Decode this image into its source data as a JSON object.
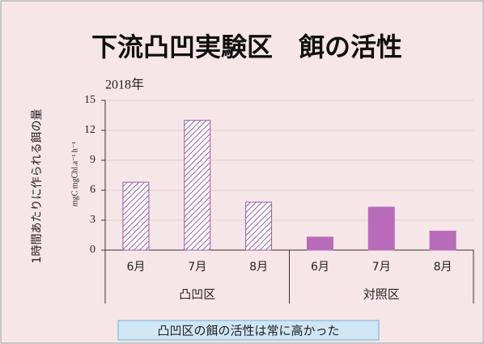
{
  "chart_data": {
    "type": "bar",
    "title": "下流凸凹実験区　餌の活性",
    "subtitle": "2018年",
    "y_label": "1時間あたりに作られる餌の量",
    "y_unit": "mgC mgChl.a⁻¹ h⁻¹",
    "annotation": "凸凹区の餌の活性は常に高かった",
    "groups": [
      {
        "name": "凸凹区",
        "categories": [
          "6月",
          "7月",
          "8月"
        ],
        "values": [
          6.8,
          13.0,
          4.8
        ],
        "color": "#9b5aa8",
        "pattern": "hatch"
      },
      {
        "name": "対照区",
        "categories": [
          "6月",
          "7月",
          "8月"
        ],
        "values": [
          1.3,
          4.3,
          1.9
        ],
        "color": "#b76bb8",
        "pattern": "solid"
      }
    ],
    "ylim": [
      0,
      15
    ],
    "yticks": [
      0,
      3,
      6,
      9,
      12,
      15
    ],
    "grid": true
  }
}
